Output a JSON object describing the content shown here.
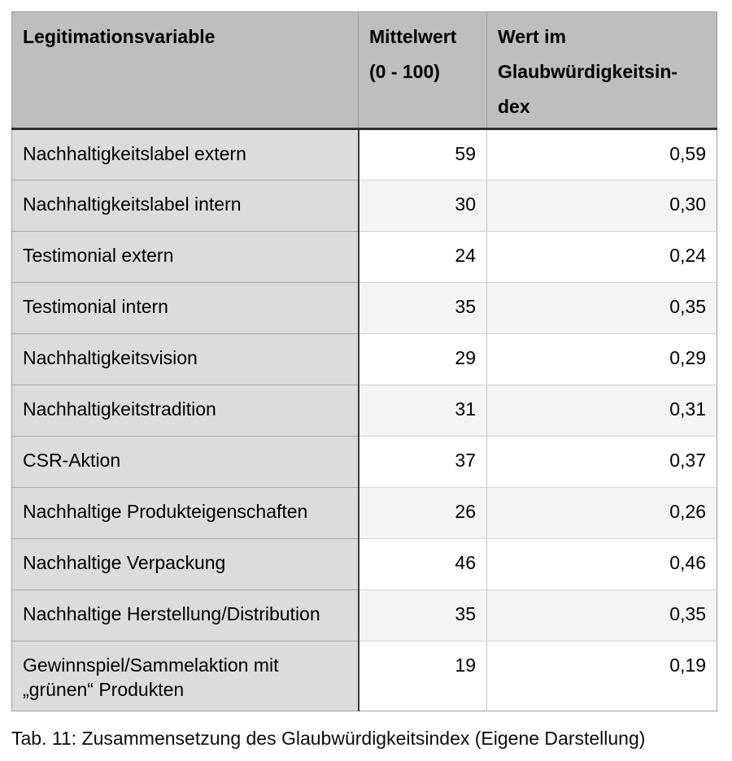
{
  "table": {
    "header": {
      "col1": "Legitimationsvariable",
      "col2": [
        "Mittelwert",
        "(0 - 100)"
      ],
      "col3": [
        "Wert im",
        "Glaubwürdigkeitsin-",
        "dex"
      ]
    },
    "rows": [
      {
        "variable": "Nachhaltigkeitslabel extern",
        "mittelwert": "59",
        "wert": "0,59"
      },
      {
        "variable": "Nachhaltigkeitslabel intern",
        "mittelwert": "30",
        "wert": "0,30"
      },
      {
        "variable": "Testimonial extern",
        "mittelwert": "24",
        "wert": "0,24"
      },
      {
        "variable": "Testimonial intern",
        "mittelwert": "35",
        "wert": "0,35"
      },
      {
        "variable": "Nachhaltigkeitsvision",
        "mittelwert": "29",
        "wert": "0,29"
      },
      {
        "variable": "Nachhaltigkeitstradition",
        "mittelwert": "31",
        "wert": "0,31"
      },
      {
        "variable": "CSR-Aktion",
        "mittelwert": "37",
        "wert": "0,37"
      },
      {
        "variable": "Nachhaltige Produkteigenschaften",
        "mittelwert": "26",
        "wert": "0,26"
      },
      {
        "variable": "Nachhaltige Verpackung",
        "mittelwert": "46",
        "wert": "0,46"
      },
      {
        "variable": "Nachhaltige Herstellung/Distribution",
        "mittelwert": "35",
        "wert": "0,35"
      },
      {
        "variable": "Gewinnspiel/Sammelaktion mit „grünen“ Produkten",
        "mittelwert": "19",
        "wert": "0,19"
      }
    ]
  },
  "caption": "Tab. 11: Zusammensetzung des Glaubwürdigkeitsindex (Eigene Darstellung)",
  "colors": {
    "header_bg": "#bdbebd",
    "first_column_bg": "#dcdcdc",
    "row_alt_bg": "#f4f4f4",
    "header_underline": "#2e2e2e",
    "column_divider_dark": "#3a3a3a"
  }
}
